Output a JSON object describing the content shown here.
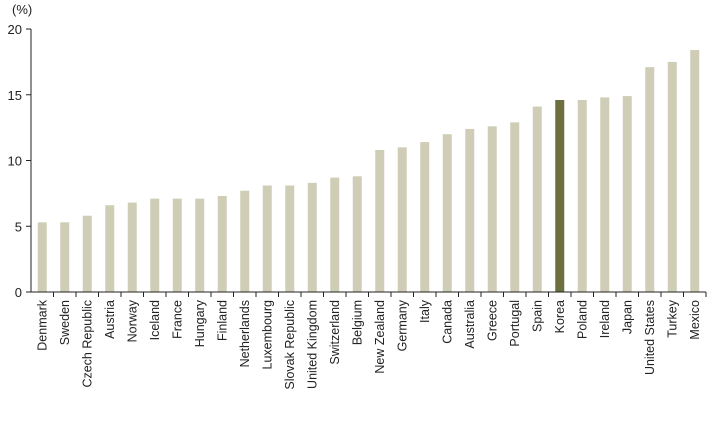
{
  "chart_data": {
    "type": "bar",
    "unit_label": "(%)",
    "ylim": [
      0,
      20
    ],
    "yticks": [
      0,
      5,
      10,
      15,
      20
    ],
    "grid": false,
    "legend": "none",
    "categories": [
      "Denmark",
      "Sweden",
      "Czech Republic",
      "Austria",
      "Norway",
      "Iceland",
      "France",
      "Hungary",
      "Finland",
      "Netherlands",
      "Luxembourg",
      "Slovak Republic",
      "United Kingdom",
      "Switzerland",
      "Belgium",
      "New Zealand",
      "Germany",
      "Italy",
      "Canada",
      "Australia",
      "Greece",
      "Portugal",
      "Spain",
      "Korea",
      "Poland",
      "Ireland",
      "Japan",
      "United States",
      "Turkey",
      "Mexico"
    ],
    "values": [
      5.3,
      5.3,
      5.8,
      6.6,
      6.8,
      7.1,
      7.1,
      7.1,
      7.3,
      7.7,
      8.1,
      8.1,
      8.3,
      8.7,
      8.8,
      10.8,
      11.0,
      11.4,
      12.0,
      12.4,
      12.6,
      12.9,
      14.1,
      14.6,
      14.6,
      14.8,
      14.9,
      17.1,
      17.5,
      18.4
    ],
    "highlight": "Korea",
    "colors": {
      "bar": "#cfcdb6",
      "highlight": "#6e6f3f",
      "axis": "#222222"
    }
  }
}
